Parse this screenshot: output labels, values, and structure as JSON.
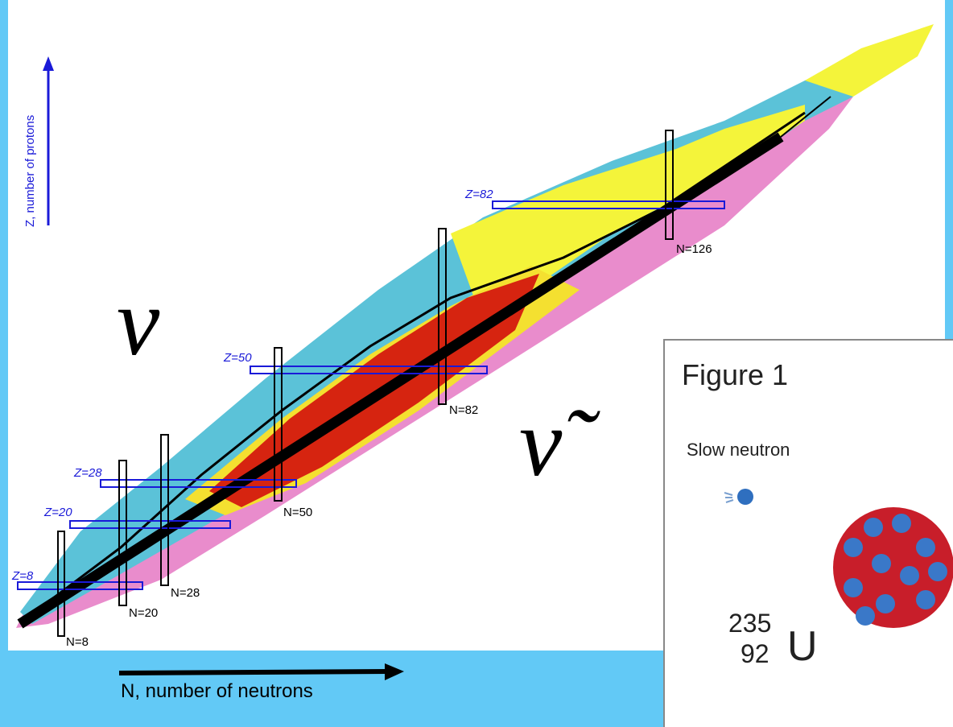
{
  "axes": {
    "z_label": "Z, number of protons",
    "n_label": "N, number of neutrons"
  },
  "magic_z": [
    {
      "label": "Z=82"
    },
    {
      "label": "Z=50"
    },
    {
      "label": "Z=28"
    },
    {
      "label": "Z=20"
    },
    {
      "label": "Z=8"
    }
  ],
  "magic_n": [
    {
      "label": "N=126"
    },
    {
      "label": "N=82"
    },
    {
      "label": "N=50"
    },
    {
      "label": "N=28"
    },
    {
      "label": "N=20"
    },
    {
      "label": "N=8"
    }
  ],
  "symbols": {
    "neutrino": "ν",
    "antineutrino": "ν̃"
  },
  "figure": {
    "title": "Figure 1",
    "caption": "Slow neutron",
    "mass_number": "235",
    "atomic_number": "92",
    "element": "U"
  }
}
